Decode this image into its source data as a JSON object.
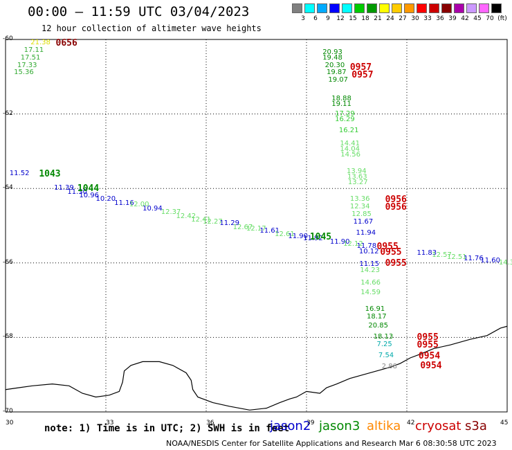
{
  "title": "00:00 – 11:59 UTC 03/04/2023",
  "subtitle": "12 hour collection of altimeter wave heights",
  "legend": {
    "colors": [
      "#808080",
      "#00ffff",
      "#00aaff",
      "#0000ff",
      "#00ffff",
      "#00cc00",
      "#009900",
      "#ffff00",
      "#ffcc00",
      "#ff9900",
      "#ff0000",
      "#cc0000",
      "#880000",
      "#aa00aa",
      "#cc99ff",
      "#ff66ff",
      "#000000"
    ],
    "ticks": [
      "3",
      "6",
      "9",
      "12",
      "15",
      "18",
      "21",
      "24",
      "27",
      "30",
      "33",
      "36",
      "39",
      "42",
      "45",
      "70",
      "(ft)"
    ]
  },
  "axes": {
    "x_ticks": [
      "30",
      "33",
      "36",
      "39",
      "42",
      "45"
    ],
    "y_ticks": [
      "-60",
      "-62",
      "-64",
      "-66",
      "-68",
      "-70"
    ]
  },
  "note": "note: 1) Time is in UTC; 2) SWH is in feet",
  "satellites": [
    {
      "name": "jason2",
      "color": "#0000cc"
    },
    {
      "name": "jason3",
      "color": "#008800"
    },
    {
      "name": "altika",
      "color": "#ff8800"
    },
    {
      "name": "cryosat",
      "color": "#cc0000"
    },
    {
      "name": "s3a",
      "color": "#880000"
    }
  ],
  "footer": "NOAA/NESDIS Center for Satellite Applications and Research   Mar  6 08:30:58 UTC 2023",
  "observations": [
    {
      "v": "21.38",
      "c": "#dddd00",
      "lon": 30.75,
      "lat": -60.1
    },
    {
      "v": "17.11",
      "c": "#33aa33",
      "lon": 30.55,
      "lat": -60.3
    },
    {
      "v": "17.51",
      "c": "#33aa33",
      "lon": 30.45,
      "lat": -60.5
    },
    {
      "v": "17.33",
      "c": "#33aa33",
      "lon": 30.35,
      "lat": -60.7
    },
    {
      "v": "15.36",
      "c": "#33aa33",
      "lon": 30.25,
      "lat": -60.9
    },
    {
      "v": "20.93",
      "c": "#008800",
      "lon": 39.48,
      "lat": -60.35
    },
    {
      "v": "19.48",
      "c": "#008800",
      "lon": 39.48,
      "lat": -60.5
    },
    {
      "v": "20.30",
      "c": "#008800",
      "lon": 39.55,
      "lat": -60.7
    },
    {
      "v": "19.87",
      "c": "#008800",
      "lon": 39.6,
      "lat": -60.9
    },
    {
      "v": "19.07",
      "c": "#008800",
      "lon": 39.65,
      "lat": -61.1
    },
    {
      "v": "18.88",
      "c": "#008800",
      "lon": 39.75,
      "lat": -61.6
    },
    {
      "v": "19.11",
      "c": "#008800",
      "lon": 39.75,
      "lat": -61.75
    },
    {
      "v": "17.29",
      "c": "#33cc33",
      "lon": 39.85,
      "lat": -62.0
    },
    {
      "v": "16.29",
      "c": "#33cc33",
      "lon": 39.85,
      "lat": -62.15
    },
    {
      "v": "16.21",
      "c": "#33cc33",
      "lon": 39.97,
      "lat": -62.45
    },
    {
      "v": "14.41",
      "c": "#66dd66",
      "lon": 40.0,
      "lat": -62.8
    },
    {
      "v": "14.04",
      "c": "#66dd66",
      "lon": 40.0,
      "lat": -62.95
    },
    {
      "v": "14.56",
      "c": "#66dd66",
      "lon": 40.02,
      "lat": -63.1
    },
    {
      "v": "13.94",
      "c": "#66dd66",
      "lon": 40.2,
      "lat": -63.55
    },
    {
      "v": "13.63",
      "c": "#66dd66",
      "lon": 40.22,
      "lat": -63.7
    },
    {
      "v": "13.27",
      "c": "#66dd66",
      "lon": 40.24,
      "lat": -63.85
    },
    {
      "v": "13.36",
      "c": "#66dd66",
      "lon": 40.3,
      "lat": -64.3
    },
    {
      "v": "12.34",
      "c": "#66dd66",
      "lon": 40.3,
      "lat": -64.5
    },
    {
      "v": "12.85",
      "c": "#66dd66",
      "lon": 40.35,
      "lat": -64.7
    },
    {
      "v": "11.67",
      "c": "#0000cc",
      "lon": 40.4,
      "lat": -64.9
    },
    {
      "v": "11.94",
      "c": "#0000cc",
      "lon": 40.48,
      "lat": -65.2
    },
    {
      "v": "11.78",
      "c": "#0000cc",
      "lon": 40.5,
      "lat": -65.55
    },
    {
      "v": "10.12",
      "c": "#0000cc",
      "lon": 40.57,
      "lat": -65.7
    },
    {
      "v": "11.15",
      "c": "#0000cc",
      "lon": 40.58,
      "lat": -66.05
    },
    {
      "v": "14.23",
      "c": "#66dd66",
      "lon": 40.6,
      "lat": -66.2
    },
    {
      "v": "14.66",
      "c": "#66dd66",
      "lon": 40.62,
      "lat": -66.55
    },
    {
      "v": "14.59",
      "c": "#66dd66",
      "lon": 40.62,
      "lat": -66.8
    },
    {
      "v": "16.91",
      "c": "#008800",
      "lon": 40.75,
      "lat": -67.25
    },
    {
      "v": "18.17",
      "c": "#008800",
      "lon": 40.8,
      "lat": -67.45
    },
    {
      "v": "20.85",
      "c": "#008800",
      "lon": 40.85,
      "lat": -67.7
    },
    {
      "v": "18.13",
      "c": "#008800",
      "lon": 41.0,
      "lat": -68.0
    },
    {
      "v": "7.25",
      "c": "#00aaaa",
      "lon": 41.1,
      "lat": -68.2
    },
    {
      "v": "7.54",
      "c": "#00aaaa",
      "lon": 41.15,
      "lat": -68.5
    },
    {
      "v": "2.88",
      "c": "#888888",
      "lon": 41.25,
      "lat": -68.8
    },
    {
      "v": "11.52",
      "c": "#0000cc",
      "lon": 30.12,
      "lat": -63.6
    },
    {
      "v": "11.39",
      "c": "#0000cc",
      "lon": 31.45,
      "lat": -64.0
    },
    {
      "v": "11.30",
      "c": "#0000cc",
      "lon": 31.85,
      "lat": -64.1
    },
    {
      "v": "10.96",
      "c": "#0000cc",
      "lon": 32.2,
      "lat": -64.2
    },
    {
      "v": "10.20",
      "c": "#0000cc",
      "lon": 32.7,
      "lat": -64.3
    },
    {
      "v": "11.16",
      "c": "#0000cc",
      "lon": 33.25,
      "lat": -64.4
    },
    {
      "v": "12.00",
      "c": "#66dd66",
      "lon": 33.7,
      "lat": -64.45
    },
    {
      "v": "10.94",
      "c": "#0000cc",
      "lon": 34.1,
      "lat": -64.55
    },
    {
      "v": "12.37",
      "c": "#66dd66",
      "lon": 34.65,
      "lat": -64.65
    },
    {
      "v": "12.42",
      "c": "#66dd66",
      "lon": 35.1,
      "lat": -64.75
    },
    {
      "v": "12.41",
      "c": "#66dd66",
      "lon": 35.55,
      "lat": -64.85
    },
    {
      "v": "12.27",
      "c": "#66dd66",
      "lon": 35.9,
      "lat": -64.9
    },
    {
      "v": "11.29",
      "c": "#0000cc",
      "lon": 36.4,
      "lat": -64.95
    },
    {
      "v": "12.67",
      "c": "#66dd66",
      "lon": 36.8,
      "lat": -65.05
    },
    {
      "v": "12.17",
      "c": "#66dd66",
      "lon": 37.2,
      "lat": -65.1
    },
    {
      "v": "11.61",
      "c": "#0000cc",
      "lon": 37.6,
      "lat": -65.15
    },
    {
      "v": "12.61",
      "c": "#66dd66",
      "lon": 38.05,
      "lat": -65.25
    },
    {
      "v": "11.90",
      "c": "#0000cc",
      "lon": 38.45,
      "lat": -65.3
    },
    {
      "v": "11.92",
      "c": "#0000cc",
      "lon": 38.9,
      "lat": -65.35
    },
    {
      "v": "11.90",
      "c": "#0000cc",
      "lon": 39.7,
      "lat": -65.45
    },
    {
      "v": "12.12",
      "c": "#66dd66",
      "lon": 40.1,
      "lat": -65.5
    },
    {
      "v": "11.83",
      "c": "#0000cc",
      "lon": 42.3,
      "lat": -65.75
    },
    {
      "v": "12.57",
      "c": "#66dd66",
      "lon": 42.75,
      "lat": -65.8
    },
    {
      "v": "12.51",
      "c": "#66dd66",
      "lon": 43.2,
      "lat": -65.85
    },
    {
      "v": "11.76",
      "c": "#0000cc",
      "lon": 43.7,
      "lat": -65.9
    },
    {
      "v": "11.60",
      "c": "#0000cc",
      "lon": 44.2,
      "lat": -65.95
    },
    {
      "v": "14.32",
      "c": "#66dd66",
      "lon": 44.75,
      "lat": -66.0
    }
  ],
  "times": [
    {
      "t": "0656",
      "c": "#880000",
      "lon": 31.5,
      "lat": -60.1
    },
    {
      "t": "0957",
      "c": "#cc0000",
      "lon": 40.3,
      "lat": -60.75
    },
    {
      "t": "0957",
      "c": "#cc0000",
      "lon": 40.35,
      "lat": -60.95
    },
    {
      "t": "0956",
      "c": "#cc0000",
      "lon": 41.35,
      "lat": -64.3
    },
    {
      "t": "0956",
      "c": "#cc0000",
      "lon": 41.35,
      "lat": -64.5
    },
    {
      "t": "0955",
      "c": "#cc0000",
      "lon": 41.1,
      "lat": -65.55
    },
    {
      "t": "0955",
      "c": "#cc0000",
      "lon": 41.2,
      "lat": -65.7
    },
    {
      "t": "0955",
      "c": "#cc0000",
      "lon": 41.35,
      "lat": -66.0
    },
    {
      "t": "0955",
      "c": "#cc0000",
      "lon": 42.3,
      "lat": -68.0
    },
    {
      "t": "0955",
      "c": "#cc0000",
      "lon": 42.3,
      "lat": -68.2
    },
    {
      "t": "0954",
      "c": "#cc0000",
      "lon": 42.35,
      "lat": -68.5
    },
    {
      "t": "0954",
      "c": "#cc0000",
      "lon": 42.4,
      "lat": -68.75
    },
    {
      "t": "1043",
      "c": "#008800",
      "lon": 31.0,
      "lat": -63.6
    },
    {
      "t": "1044",
      "c": "#008800",
      "lon": 32.15,
      "lat": -64.0
    },
    {
      "t": "1045",
      "c": "#008800",
      "lon": 39.1,
      "lat": -65.3
    }
  ],
  "coastline": [
    [
      30.0,
      -69.4
    ],
    [
      30.4,
      -69.35
    ],
    [
      30.8,
      -69.3
    ],
    [
      31.4,
      -69.25
    ],
    [
      31.9,
      -69.3
    ],
    [
      32.3,
      -69.5
    ],
    [
      32.7,
      -69.6
    ],
    [
      33.1,
      -69.55
    ],
    [
      33.4,
      -69.45
    ],
    [
      33.5,
      -69.2
    ],
    [
      33.55,
      -68.9
    ],
    [
      33.75,
      -68.75
    ],
    [
      34.1,
      -68.65
    ],
    [
      34.6,
      -68.65
    ],
    [
      35.0,
      -68.75
    ],
    [
      35.4,
      -68.95
    ],
    [
      35.55,
      -69.15
    ],
    [
      35.6,
      -69.4
    ],
    [
      35.75,
      -69.6
    ],
    [
      36.2,
      -69.75
    ],
    [
      36.7,
      -69.85
    ],
    [
      37.3,
      -69.95
    ],
    [
      37.8,
      -69.9
    ],
    [
      38.2,
      -69.75
    ],
    [
      38.5,
      -69.65
    ],
    [
      38.7,
      -69.6
    ],
    [
      39.0,
      -69.45
    ],
    [
      39.4,
      -69.5
    ],
    [
      39.6,
      -69.35
    ],
    [
      39.9,
      -69.25
    ],
    [
      40.3,
      -69.1
    ],
    [
      40.7,
      -69.0
    ],
    [
      41.1,
      -68.9
    ],
    [
      41.5,
      -68.8
    ],
    [
      41.8,
      -68.7
    ],
    [
      42.1,
      -68.55
    ],
    [
      42.4,
      -68.45
    ],
    [
      42.8,
      -68.3
    ],
    [
      43.3,
      -68.2
    ],
    [
      43.9,
      -68.05
    ],
    [
      44.4,
      -67.95
    ],
    [
      44.8,
      -67.75
    ],
    [
      45.0,
      -67.7
    ]
  ]
}
